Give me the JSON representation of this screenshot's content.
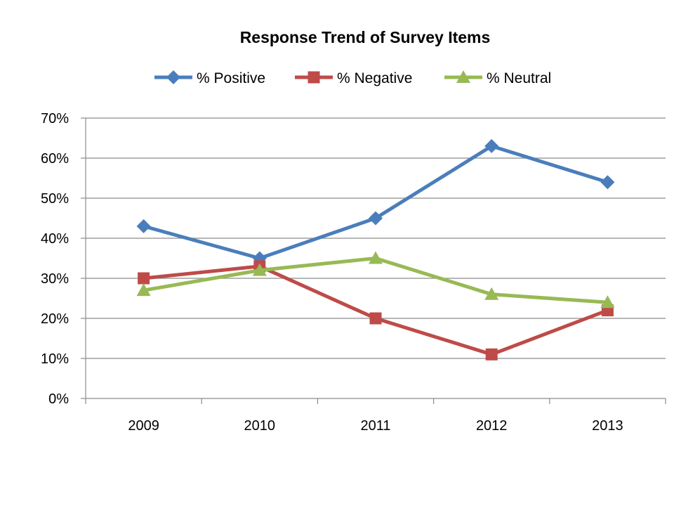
{
  "chart_data": {
    "type": "line",
    "title": "Response Trend of Survey Items",
    "xlabel": "",
    "ylabel": "",
    "categories": [
      "2009",
      "2010",
      "2011",
      "2012",
      "2013"
    ],
    "ylim": [
      0,
      70
    ],
    "y_ticks": [
      "0%",
      "10%",
      "20%",
      "30%",
      "40%",
      "50%",
      "60%",
      "70%"
    ],
    "grid": "horizontal",
    "legend_position": "top",
    "series": [
      {
        "name": "% Positive",
        "values": [
          43,
          35,
          45,
          63,
          54
        ],
        "color": "#4a7ebb",
        "marker": "diamond"
      },
      {
        "name": "% Negative",
        "values": [
          30,
          33,
          20,
          11,
          22
        ],
        "color": "#be4b48",
        "marker": "square"
      },
      {
        "name": "% Neutral",
        "values": [
          27,
          32,
          35,
          26,
          24
        ],
        "color": "#98b954",
        "marker": "triangle"
      }
    ]
  }
}
